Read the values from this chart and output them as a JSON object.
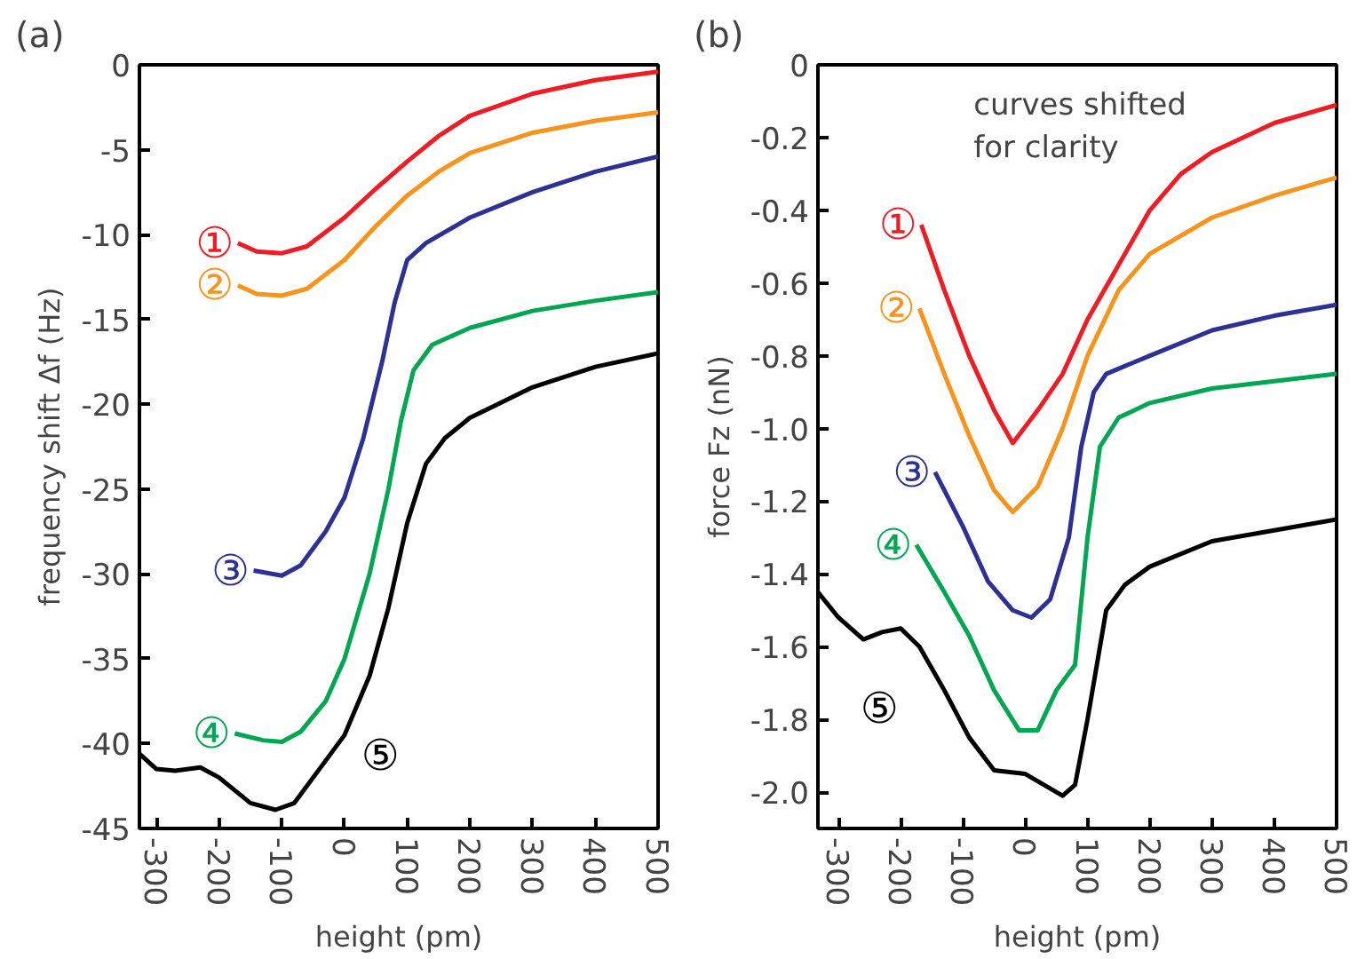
{
  "chart_data": [
    {
      "type": "line",
      "title": "(a)",
      "xlabel": "height (pm)",
      "ylabel": "frequency shift Δf (Hz)",
      "annotations": [
        {
          "text": "①",
          "x": -170,
          "y": -10.5
        },
        {
          "text": "②",
          "x": -170,
          "y": -13.0
        },
        {
          "text": "③",
          "x": -145,
          "y": -29.8
        },
        {
          "text": "④",
          "x": -175,
          "y": -39.4
        },
        {
          "text": "⑤",
          "x": 40,
          "y": -36
        }
      ],
      "xlim": [
        -327,
        500
      ],
      "ylim": [
        -45,
        0
      ],
      "xticks": [
        -300,
        -200,
        -100,
        0,
        100,
        200,
        300,
        400,
        500
      ],
      "yticks": [
        0,
        -5,
        -10,
        -15,
        -20,
        -25,
        -30,
        -35,
        -40,
        -45
      ],
      "grid": false,
      "marker": "none",
      "line_style": "solid",
      "series": [
        {
          "color": "#ee1c25",
          "x": [
            -170,
            -140,
            -100,
            -60,
            0,
            50,
            100,
            150,
            200,
            300,
            400,
            500
          ],
          "values": [
            -10.5,
            -11.0,
            -11.1,
            -10.7,
            -9.0,
            -7.3,
            -5.7,
            -4.2,
            -3.0,
            -1.7,
            -0.9,
            -0.4
          ]
        },
        {
          "color": "#f7941d",
          "x": [
            -170,
            -140,
            -100,
            -60,
            0,
            50,
            100,
            150,
            200,
            300,
            400,
            500
          ],
          "values": [
            -13.0,
            -13.5,
            -13.6,
            -13.2,
            -11.5,
            -9.5,
            -7.7,
            -6.3,
            -5.2,
            -4.0,
            -3.3,
            -2.8
          ]
        },
        {
          "color": "#2e3192",
          "x": [
            -145,
            -100,
            -70,
            -30,
            0,
            30,
            60,
            80,
            100,
            130,
            200,
            300,
            400,
            500
          ],
          "values": [
            -29.8,
            -30.1,
            -29.5,
            -27.5,
            -25.5,
            -22,
            -17.5,
            -14,
            -11.5,
            -10.5,
            -9.0,
            -7.5,
            -6.3,
            -5.4
          ]
        },
        {
          "color": "#00a651",
          "x": [
            -175,
            -130,
            -100,
            -70,
            -30,
            0,
            40,
            70,
            90,
            110,
            140,
            200,
            300,
            400,
            500
          ],
          "values": [
            -39.4,
            -39.8,
            -39.9,
            -39.3,
            -37.5,
            -35,
            -30,
            -25,
            -21,
            -18,
            -16.5,
            -15.5,
            -14.5,
            -13.9,
            -13.4
          ]
        },
        {
          "color": "#000000",
          "x": [
            -327,
            -300,
            -270,
            -230,
            -200,
            -150,
            -110,
            -80,
            -40,
            0,
            40,
            70,
            100,
            130,
            160,
            200,
            300,
            400,
            500
          ],
          "values": [
            -40.6,
            -41.5,
            -41.6,
            -41.4,
            -42,
            -43.5,
            -43.9,
            -43.5,
            -41.5,
            -39.5,
            -36,
            -32,
            -27,
            -23.5,
            -22,
            -20.8,
            -19,
            -17.8,
            -17.0
          ]
        }
      ]
    },
    {
      "type": "line",
      "title": "(b)",
      "xlabel": "height (pm)",
      "ylabel": "force Fz (nN)",
      "annotations": [
        {
          "text": "①",
          "x": -167,
          "y": -0.44
        },
        {
          "text": "②",
          "x": -170,
          "y": -0.67
        },
        {
          "text": "③",
          "x": -145,
          "y": -1.12
        },
        {
          "text": "④",
          "x": -175,
          "y": -1.32
        },
        {
          "text": "⑤",
          "x": -200,
          "y": -1.55
        },
        "curves shifted\nfor clarity"
      ],
      "xlim": [
        -333,
        500
      ],
      "ylim": [
        -2.1,
        0
      ],
      "xticks": [
        -300,
        -200,
        -100,
        0,
        100,
        200,
        300,
        400,
        500
      ],
      "yticks": [
        0,
        -0.2,
        -0.4,
        -0.6,
        -0.8,
        {
          "value": -1.0,
          "label": "-1.0"
        },
        -1.2,
        -1.4,
        -1.6,
        -1.8,
        {
          "value": -2.0,
          "label": "-2.0"
        }
      ],
      "grid": false,
      "marker": "none",
      "line_style": "solid",
      "series": [
        {
          "color": "#ee1c25",
          "x": [
            -167,
            -130,
            -90,
            -50,
            -20,
            20,
            60,
            100,
            150,
            200,
            250,
            300,
            400,
            500
          ],
          "values": [
            -0.44,
            -0.62,
            -0.8,
            -0.95,
            -1.04,
            -0.95,
            -0.85,
            -0.7,
            -0.55,
            -0.4,
            -0.3,
            -0.24,
            -0.16,
            -0.11
          ]
        },
        {
          "color": "#f7941d",
          "x": [
            -170,
            -130,
            -90,
            -50,
            -20,
            20,
            60,
            100,
            150,
            200,
            300,
            400,
            500
          ],
          "values": [
            -0.67,
            -0.85,
            -1.02,
            -1.17,
            -1.23,
            -1.16,
            -1.0,
            -0.8,
            -0.62,
            -0.52,
            -0.42,
            -0.36,
            -0.31
          ]
        },
        {
          "color": "#2e3192",
          "x": [
            -145,
            -100,
            -60,
            -20,
            10,
            40,
            70,
            90,
            110,
            130,
            200,
            300,
            400,
            500
          ],
          "values": [
            -1.12,
            -1.27,
            -1.42,
            -1.5,
            -1.52,
            -1.47,
            -1.3,
            -1.05,
            -0.9,
            -0.85,
            -0.8,
            -0.73,
            -0.69,
            -0.66
          ]
        },
        {
          "color": "#00a651",
          "x": [
            -175,
            -130,
            -90,
            -50,
            -10,
            20,
            50,
            80,
            100,
            120,
            150,
            200,
            300,
            400,
            500
          ],
          "values": [
            -1.32,
            -1.45,
            -1.57,
            -1.72,
            -1.83,
            -1.83,
            -1.72,
            -1.65,
            -1.3,
            -1.05,
            -0.97,
            -0.93,
            -0.89,
            -0.87,
            -0.85
          ]
        },
        {
          "color": "#000000",
          "x": [
            -333,
            -300,
            -260,
            -230,
            -200,
            -170,
            -130,
            -90,
            -50,
            0,
            30,
            60,
            80,
            100,
            130,
            160,
            200,
            300,
            400,
            500
          ],
          "values": [
            -1.45,
            -1.52,
            -1.58,
            -1.56,
            -1.55,
            -1.6,
            -1.72,
            -1.85,
            -1.94,
            -1.95,
            -1.98,
            -2.01,
            -1.98,
            -1.8,
            -1.5,
            -1.43,
            -1.38,
            -1.31,
            -1.28,
            -1.25
          ]
        }
      ]
    }
  ]
}
